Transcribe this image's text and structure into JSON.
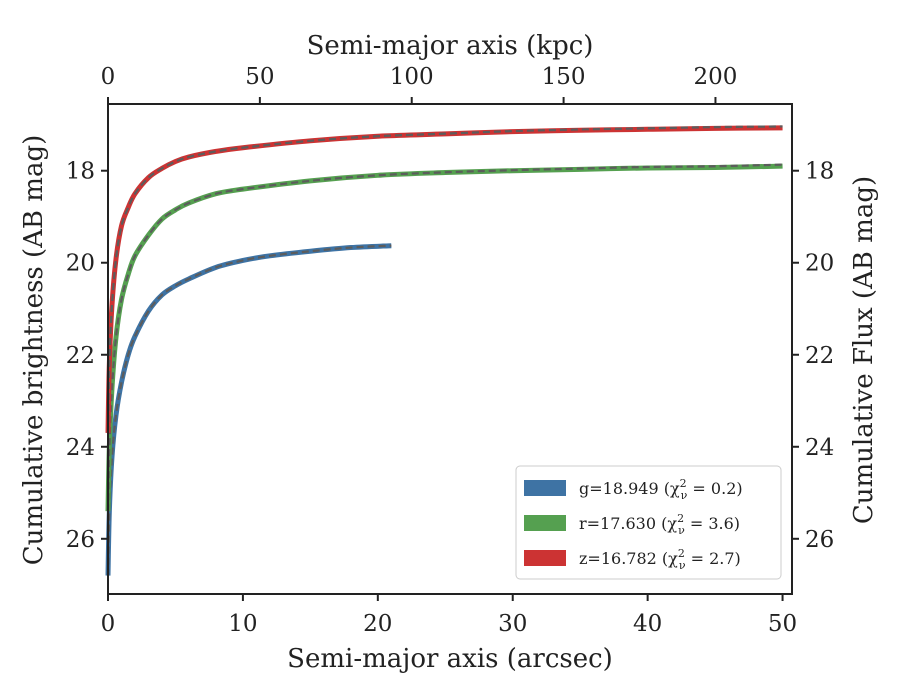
{
  "chart_data": {
    "type": "line",
    "xlabel": "Semi-major axis (arcsec)",
    "x2label": "Semi-major axis (kpc)",
    "ylabel": "Cumulative brightness (AB mag)",
    "y2label": "Cumulative Flux (AB mag)",
    "xlim": [
      0,
      50.7
    ],
    "x2lim": [
      0,
      225.2
    ],
    "ylim": [
      27.2,
      16.55
    ],
    "y_inverted": true,
    "xticks": [
      "0",
      "10",
      "20",
      "30",
      "40",
      "50"
    ],
    "x2ticks": [
      "0",
      "50",
      "100",
      "150",
      "200"
    ],
    "yticks": [
      "18",
      "20",
      "22",
      "24",
      "26"
    ],
    "legend_position": "lower right",
    "series": [
      {
        "name": "g=18.949",
        "chi_label": "(χ",
        "chi_sub": "ν",
        "chi_sup": "2",
        "chi_value": " = 0.2)",
        "color": "#3e73a4",
        "model_color": "#5c5c5c",
        "x": [
          0,
          0.1,
          0.3,
          0.6,
          1,
          1.5,
          2,
          3,
          4,
          5,
          6,
          8,
          10,
          12,
          15,
          18,
          21
        ],
        "y": [
          26.8,
          25.4,
          24.2,
          23.3,
          22.6,
          22.0,
          21.6,
          21.05,
          20.7,
          20.5,
          20.35,
          20.1,
          19.95,
          19.85,
          19.75,
          19.67,
          19.63
        ]
      },
      {
        "name": "r=17.630",
        "chi_label": "(χ",
        "chi_sub": "ν",
        "chi_sup": "2",
        "chi_value": " = 3.6)",
        "color": "#55a050",
        "model_color": "#5c5c5c",
        "x": [
          0,
          0.1,
          0.3,
          0.6,
          1,
          1.5,
          2,
          3,
          4,
          5,
          6,
          8,
          10,
          15,
          20,
          25,
          30,
          35,
          40,
          45,
          50
        ],
        "y": [
          25.4,
          24.0,
          22.7,
          21.6,
          20.8,
          20.25,
          19.85,
          19.4,
          19.05,
          18.85,
          18.7,
          18.5,
          18.4,
          18.22,
          18.1,
          18.04,
          18.0,
          17.97,
          17.94,
          17.93,
          17.9
        ]
      },
      {
        "name": "z=16.782",
        "chi_label": "(χ",
        "chi_sub": "ν",
        "chi_sup": "2",
        "chi_value": " = 2.7)",
        "color": "#cc3333",
        "model_color": "#5c5c5c",
        "x": [
          0,
          0.1,
          0.3,
          0.6,
          1,
          1.5,
          2,
          3,
          4,
          5,
          6,
          8,
          10,
          15,
          20,
          25,
          30,
          35,
          40,
          45,
          50
        ],
        "y": [
          23.7,
          22.2,
          20.9,
          19.9,
          19.2,
          18.8,
          18.5,
          18.15,
          17.95,
          17.8,
          17.7,
          17.58,
          17.5,
          17.35,
          17.25,
          17.2,
          17.15,
          17.12,
          17.1,
          17.08,
          17.07
        ]
      }
    ]
  }
}
